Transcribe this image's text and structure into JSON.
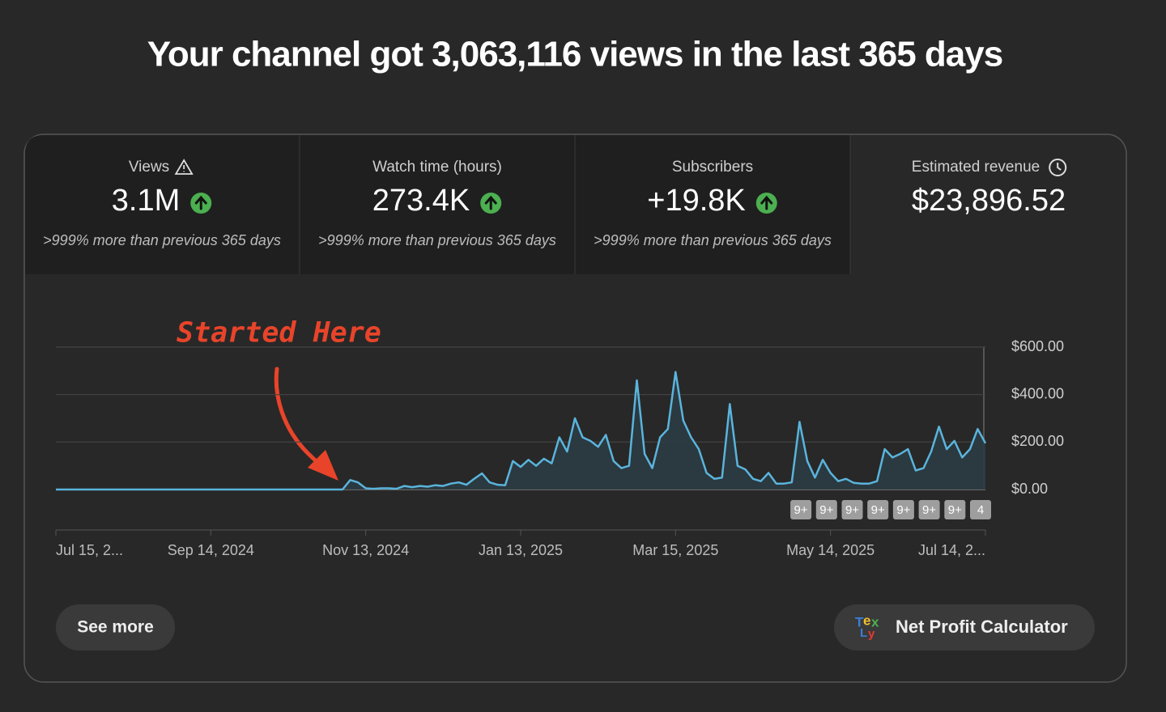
{
  "header": {
    "title": "Your channel got 3,063,116 views in the last 365 days"
  },
  "metrics": [
    {
      "label": "Views",
      "value": "3.1M",
      "comparison": ">999% more than previous 365 days"
    },
    {
      "label": "Watch time (hours)",
      "value": "273.4K",
      "comparison": ">999% more than previous 365 days"
    },
    {
      "label": "Subscribers",
      "value": "+19.8K",
      "comparison": ">999% more than previous 365 days"
    },
    {
      "label": "Estimated revenue",
      "value": "$23,896.52"
    }
  ],
  "chart_data": {
    "type": "line",
    "color": "#5ab4dc",
    "annotation": "Started Here",
    "categories": [
      "Jul 15, 2...",
      null,
      null,
      null,
      null,
      null,
      null,
      null,
      null,
      null,
      null,
      null,
      null,
      null,
      null,
      null,
      null,
      null,
      null,
      null,
      "Sep 14, 2024",
      null,
      null,
      null,
      null,
      null,
      null,
      null,
      null,
      null,
      null,
      null,
      null,
      null,
      null,
      null,
      null,
      null,
      null,
      null,
      "Nov 13, 2024",
      null,
      null,
      null,
      null,
      null,
      null,
      null,
      null,
      null,
      null,
      null,
      null,
      null,
      null,
      null,
      null,
      null,
      null,
      null,
      "Jan 13, 2025",
      null,
      null,
      null,
      null,
      null,
      null,
      null,
      null,
      null,
      null,
      null,
      null,
      null,
      null,
      null,
      null,
      null,
      null,
      null,
      "Mar 15, 2025",
      null,
      null,
      null,
      null,
      null,
      null,
      null,
      null,
      null,
      null,
      null,
      null,
      null,
      null,
      null,
      null,
      null,
      null,
      null,
      "May 14, 2025",
      null,
      null,
      null,
      null,
      null,
      null,
      null,
      null,
      null,
      null,
      null,
      null,
      null,
      null,
      null,
      null,
      null,
      null,
      null,
      "Jul 14, 2..."
    ],
    "values": [
      0,
      0,
      0,
      0,
      0,
      0,
      0,
      0,
      0,
      0,
      0,
      0,
      0,
      0,
      0,
      0,
      0,
      0,
      0,
      0,
      0,
      0,
      0,
      0,
      0,
      0,
      0,
      0,
      0,
      0,
      0,
      0,
      0,
      0,
      0,
      0,
      0,
      0,
      40,
      30,
      5,
      3,
      5,
      5,
      3,
      15,
      10,
      15,
      12,
      18,
      15,
      25,
      30,
      20,
      45,
      68,
      30,
      20,
      18,
      120,
      95,
      125,
      100,
      130,
      110,
      220,
      160,
      300,
      220,
      205,
      180,
      230,
      120,
      90,
      100,
      460,
      150,
      90,
      220,
      255,
      495,
      290,
      220,
      170,
      70,
      45,
      50,
      360,
      100,
      85,
      45,
      35,
      70,
      25,
      25,
      30,
      285,
      120,
      50,
      125,
      70,
      35,
      45,
      28,
      25,
      25,
      35,
      170,
      135,
      150,
      170,
      80,
      90,
      160,
      265,
      170,
      205,
      135,
      170,
      255,
      195
    ],
    "ylim": [
      0,
      600
    ],
    "yticks": [
      {
        "value": 0,
        "label": "$0.00"
      },
      {
        "value": 200,
        "label": "$200.00"
      },
      {
        "value": 400,
        "label": "$400.00"
      },
      {
        "value": 600,
        "label": "$600.00"
      }
    ],
    "grid": true,
    "badges": [
      "9+",
      "9+",
      "9+",
      "9+",
      "9+",
      "9+",
      "9+",
      "4"
    ]
  },
  "buttons": {
    "see_more": "See more",
    "net_profit": "Net Profit Calculator"
  }
}
